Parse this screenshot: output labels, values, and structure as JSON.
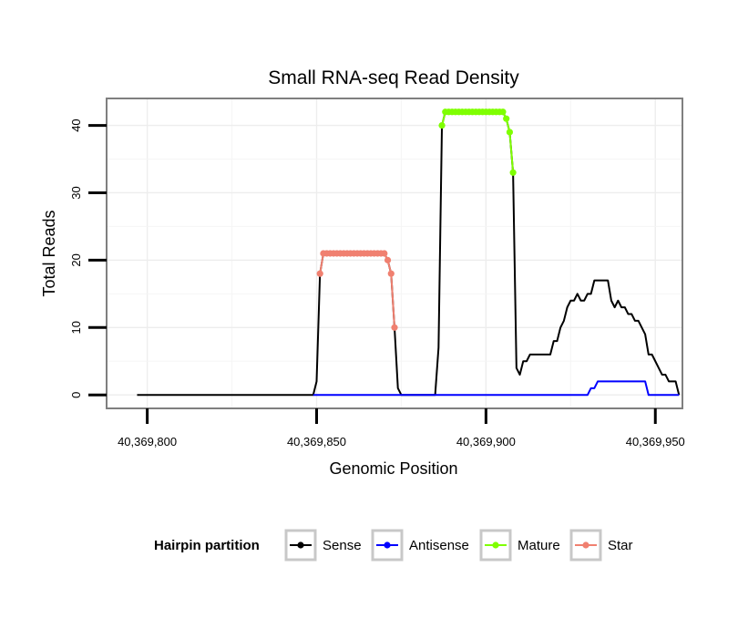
{
  "chart_data": {
    "type": "line",
    "title": "Small RNA-seq Read Density",
    "xlabel": "Genomic Position",
    "ylabel": "Total Reads",
    "xlim": [
      40369788,
      40369958
    ],
    "ylim": [
      -2,
      44
    ],
    "x_ticks": [
      40369800,
      40369850,
      40369900,
      40369950
    ],
    "x_tick_labels": [
      "40,369,800",
      "40,369,850",
      "40,369,900",
      "40,369,950"
    ],
    "y_ticks": [
      0,
      10,
      20,
      30,
      40
    ],
    "y_tick_labels": [
      "0",
      "10",
      "20",
      "30",
      "40"
    ],
    "grid": true,
    "legend": {
      "title": "Hairpin partition",
      "position": "bottom",
      "entries": [
        {
          "label": "Sense",
          "color": "#000000"
        },
        {
          "label": "Antisense",
          "color": "#0000ff"
        },
        {
          "label": "Mature",
          "color": "#7fff00"
        },
        {
          "label": "Star",
          "color": "#f08070"
        }
      ]
    },
    "series": [
      {
        "name": "Sense",
        "color": "#000000",
        "points": [
          [
            40369797,
            0
          ],
          [
            40369849,
            0
          ],
          [
            40369850,
            2
          ],
          [
            40369851,
            18
          ],
          [
            40369852,
            21
          ],
          [
            40369870,
            21
          ],
          [
            40369871,
            20
          ],
          [
            40369872,
            18
          ],
          [
            40369873,
            10
          ],
          [
            40369874,
            1
          ],
          [
            40369875,
            0
          ],
          [
            40369885,
            0
          ],
          [
            40369886,
            7
          ],
          [
            40369887,
            40
          ],
          [
            40369888,
            42
          ],
          [
            40369905,
            42
          ],
          [
            40369906,
            41
          ],
          [
            40369907,
            39
          ],
          [
            40369908,
            33
          ],
          [
            40369909,
            4
          ],
          [
            40369910,
            3
          ],
          [
            40369911,
            5
          ],
          [
            40369912,
            5
          ],
          [
            40369913,
            6
          ],
          [
            40369919,
            6
          ],
          [
            40369920,
            8
          ],
          [
            40369921,
            8
          ],
          [
            40369922,
            10
          ],
          [
            40369923,
            11
          ],
          [
            40369924,
            13
          ],
          [
            40369925,
            14
          ],
          [
            40369926,
            14
          ],
          [
            40369927,
            15
          ],
          [
            40369928,
            14
          ],
          [
            40369929,
            14
          ],
          [
            40369930,
            15
          ],
          [
            40369931,
            15
          ],
          [
            40369932,
            17
          ],
          [
            40369936,
            17
          ],
          [
            40369937,
            14
          ],
          [
            40369938,
            13
          ],
          [
            40369939,
            14
          ],
          [
            40369940,
            13
          ],
          [
            40369941,
            13
          ],
          [
            40369942,
            12
          ],
          [
            40369943,
            12
          ],
          [
            40369944,
            11
          ],
          [
            40369945,
            11
          ],
          [
            40369946,
            10
          ],
          [
            40369947,
            9
          ],
          [
            40369948,
            6
          ],
          [
            40369949,
            6
          ],
          [
            40369950,
            5
          ],
          [
            40369951,
            4
          ],
          [
            40369952,
            3
          ],
          [
            40369953,
            3
          ],
          [
            40369954,
            2
          ],
          [
            40369955,
            2
          ],
          [
            40369956,
            2
          ],
          [
            40369957,
            0
          ]
        ]
      },
      {
        "name": "Antisense",
        "color": "#0000ff",
        "points": [
          [
            40369849,
            0
          ],
          [
            40369930,
            0
          ],
          [
            40369931,
            1
          ],
          [
            40369932,
            1
          ],
          [
            40369933,
            2
          ],
          [
            40369947,
            2
          ],
          [
            40369948,
            0
          ],
          [
            40369957,
            0
          ]
        ]
      },
      {
        "name": "Mature",
        "color": "#7fff00",
        "points": [
          [
            40369887,
            40
          ],
          [
            40369888,
            42
          ],
          [
            40369889,
            42
          ],
          [
            40369890,
            42
          ],
          [
            40369891,
            42
          ],
          [
            40369892,
            42
          ],
          [
            40369893,
            42
          ],
          [
            40369894,
            42
          ],
          [
            40369895,
            42
          ],
          [
            40369896,
            42
          ],
          [
            40369897,
            42
          ],
          [
            40369898,
            42
          ],
          [
            40369899,
            42
          ],
          [
            40369900,
            42
          ],
          [
            40369901,
            42
          ],
          [
            40369902,
            42
          ],
          [
            40369903,
            42
          ],
          [
            40369904,
            42
          ],
          [
            40369905,
            42
          ],
          [
            40369906,
            41
          ],
          [
            40369907,
            39
          ],
          [
            40369908,
            33
          ]
        ]
      },
      {
        "name": "Star",
        "color": "#f08070",
        "points": [
          [
            40369851,
            18
          ],
          [
            40369852,
            21
          ],
          [
            40369853,
            21
          ],
          [
            40369854,
            21
          ],
          [
            40369855,
            21
          ],
          [
            40369856,
            21
          ],
          [
            40369857,
            21
          ],
          [
            40369858,
            21
          ],
          [
            40369859,
            21
          ],
          [
            40369860,
            21
          ],
          [
            40369861,
            21
          ],
          [
            40369862,
            21
          ],
          [
            40369863,
            21
          ],
          [
            40369864,
            21
          ],
          [
            40369865,
            21
          ],
          [
            40369866,
            21
          ],
          [
            40369867,
            21
          ],
          [
            40369868,
            21
          ],
          [
            40369869,
            21
          ],
          [
            40369870,
            21
          ],
          [
            40369871,
            20
          ],
          [
            40369872,
            18
          ],
          [
            40369873,
            10
          ]
        ]
      }
    ]
  }
}
